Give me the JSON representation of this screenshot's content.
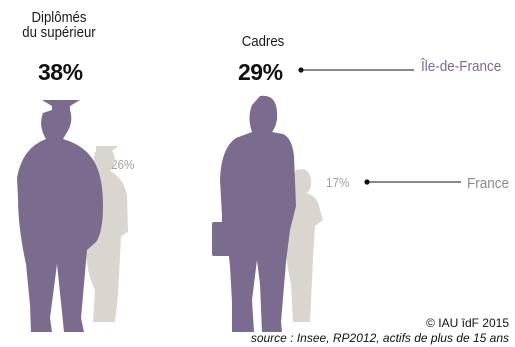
{
  "chart_data": {
    "type": "pictogram",
    "categories": [
      "Diplômés du supérieur",
      "Cadres"
    ],
    "series": [
      {
        "name": "Île-de-France",
        "values": [
          38,
          29
        ],
        "labels": [
          "38%",
          "29%"
        ],
        "color": "#7b6b8f"
      },
      {
        "name": "France",
        "values": [
          26,
          17
        ],
        "labels": [
          "26%",
          "17%"
        ],
        "color": "#dbd5d0"
      }
    ]
  },
  "labels": {
    "cat1_line1": "Diplômés",
    "cat1_line2": "du supérieur",
    "cat2": "Cadres"
  },
  "credit": "© IAU îdF 2015",
  "source": "source : Insee, RP2012, actifs de plus de 15 ans",
  "colors": {
    "idf": "#7b6b8f",
    "france": "#dbd5d0",
    "france_text": "#a5a09e",
    "legend_idf_text": "#7b6b8f",
    "legend_france_text": "#8a8a8a"
  },
  "icons": [
    "graduate-silhouette",
    "executive-silhouette"
  ]
}
